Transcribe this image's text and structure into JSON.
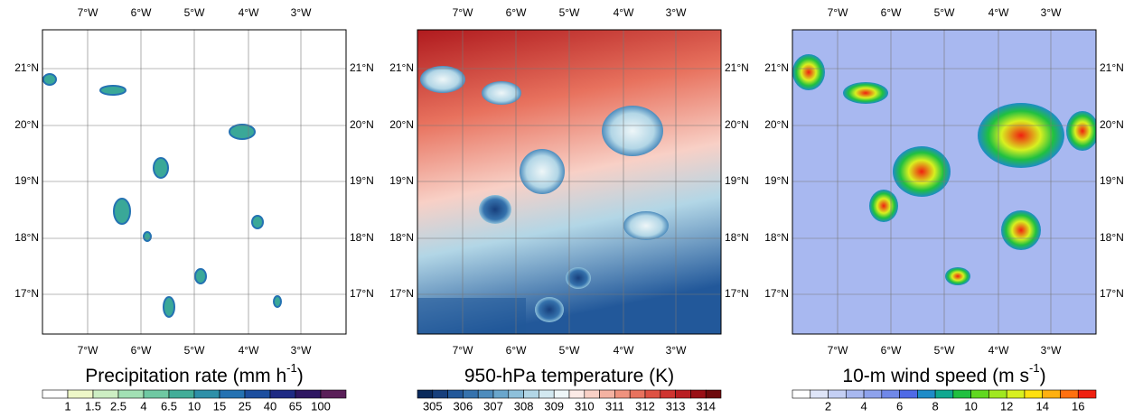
{
  "lon_labels": [
    "7°W",
    "6°W",
    "5°W",
    "4°W",
    "3°W"
  ],
  "lat_labels": [
    "21°N",
    "20°N",
    "19°N",
    "18°N",
    "17°N"
  ],
  "panels": [
    {
      "title": "Precipitation rate (mm h",
      "title_sup": "-1",
      "title_end": ")",
      "colorbar": {
        "labels": [
          "1",
          "1.5",
          "2.5",
          "4",
          "6.5",
          "10",
          "15",
          "25",
          "40",
          "65",
          "100"
        ],
        "colors": [
          "#ffffff",
          "#eef7c8",
          "#cdeec3",
          "#a2e0b4",
          "#6fc8a2",
          "#42ad98",
          "#2e90a8",
          "#2472b2",
          "#1c4f9f",
          "#1e2a84",
          "#2e1662",
          "#5a1f58"
        ]
      }
    },
    {
      "title": "950-hPa temperature (K)",
      "colorbar": {
        "labels": [
          "305",
          "306",
          "307",
          "308",
          "309",
          "310",
          "311",
          "312",
          "313",
          "314"
        ],
        "colors": [
          "#0a2a5c",
          "#173f7c",
          "#22589a",
          "#3572ad",
          "#4d8cbd",
          "#6aa6cc",
          "#8ec0da",
          "#b2d6e6",
          "#d2e8f0",
          "#eef6f8",
          "#fbeae6",
          "#f8d0c6",
          "#f4b2a2",
          "#ef927e",
          "#e8725e",
          "#de5244",
          "#cf3430",
          "#b91e22",
          "#9a1016",
          "#6e0a0c"
        ]
      }
    },
    {
      "title": "10-m wind speed (m s",
      "title_sup": "-1",
      "title_end": ")",
      "colorbar": {
        "labels": [
          "2",
          "4",
          "6",
          "8",
          "10",
          "12",
          "14",
          "16"
        ],
        "colors": [
          "#ffffff",
          "#dfe5f8",
          "#c4cff4",
          "#a8b8f0",
          "#8ea2ec",
          "#7088e8",
          "#4f6ae6",
          "#1e8cc8",
          "#10a890",
          "#20c040",
          "#60d820",
          "#a0e820",
          "#d8f020",
          "#ffe010",
          "#ffb010",
          "#ff7010",
          "#f02010"
        ]
      }
    }
  ]
}
